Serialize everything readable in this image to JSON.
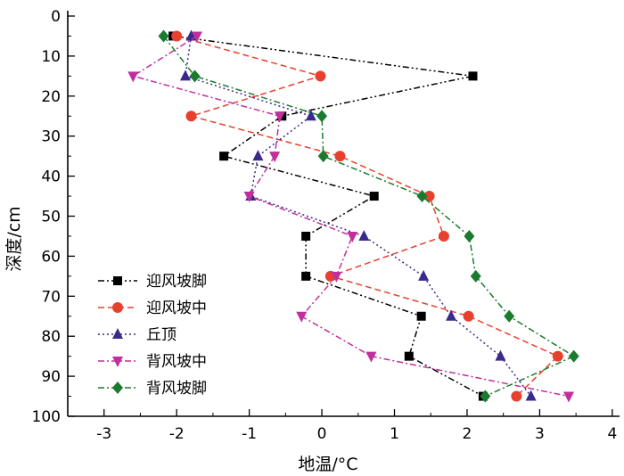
{
  "chart_data": {
    "type": "line",
    "title": "",
    "xlabel": "地温/°C",
    "ylabel": "深度/cm",
    "xlim": [
      -3.5,
      4.1
    ],
    "ylim": [
      0,
      100
    ],
    "y_inverted": true,
    "x_ticks": [
      -3,
      -2,
      -1,
      0,
      1,
      2,
      3,
      4
    ],
    "y_ticks": [
      0,
      10,
      20,
      30,
      40,
      50,
      60,
      70,
      80,
      90,
      100
    ],
    "grid": false,
    "legend_position": "bottom-left",
    "series": [
      {
        "name": "迎风坡脚",
        "color": "#000000",
        "marker": "square",
        "dash": "dash-dot-dot",
        "points": [
          [
            -2.05,
            5
          ],
          [
            2.08,
            15
          ],
          [
            -0.55,
            25
          ],
          [
            -1.35,
            35
          ],
          [
            0.72,
            45
          ],
          [
            -0.22,
            55
          ],
          [
            -0.22,
            65
          ],
          [
            1.37,
            75
          ],
          [
            1.2,
            85
          ],
          [
            2.22,
            95
          ]
        ]
      },
      {
        "name": "迎风坡中",
        "color": "#e8402e",
        "marker": "circle",
        "dash": "dash",
        "points": [
          [
            -2.0,
            5
          ],
          [
            -0.02,
            15
          ],
          [
            -1.8,
            25
          ],
          [
            0.25,
            35
          ],
          [
            1.48,
            45
          ],
          [
            1.68,
            55
          ],
          [
            0.12,
            65
          ],
          [
            2.02,
            75
          ],
          [
            3.25,
            85
          ],
          [
            2.68,
            95
          ]
        ]
      },
      {
        "name": "丘顶",
        "color": "#3a2a8c",
        "marker": "triangle-up",
        "dash": "dot",
        "points": [
          [
            -1.8,
            5
          ],
          [
            -1.88,
            15
          ],
          [
            -0.15,
            25
          ],
          [
            -0.88,
            35
          ],
          [
            -0.98,
            45
          ],
          [
            0.58,
            55
          ],
          [
            1.4,
            65
          ],
          [
            1.78,
            75
          ],
          [
            2.46,
            85
          ],
          [
            2.88,
            95
          ]
        ]
      },
      {
        "name": "背风坡中",
        "color": "#c0309c",
        "marker": "triangle-down",
        "dash": "dash-dot",
        "points": [
          [
            -1.72,
            5
          ],
          [
            -2.6,
            15
          ],
          [
            -0.58,
            25
          ],
          [
            -0.65,
            35
          ],
          [
            -1.0,
            45
          ],
          [
            0.42,
            55
          ],
          [
            0.2,
            65
          ],
          [
            -0.28,
            75
          ],
          [
            0.68,
            85
          ],
          [
            3.4,
            95
          ]
        ]
      },
      {
        "name": "背风坡脚",
        "color": "#1a7a2e",
        "marker": "diamond",
        "dash": "dash-dot",
        "points": [
          [
            -2.18,
            5
          ],
          [
            -1.75,
            15
          ],
          [
            0.0,
            25
          ],
          [
            0.02,
            35
          ],
          [
            1.38,
            45
          ],
          [
            2.03,
            55
          ],
          [
            2.12,
            65
          ],
          [
            2.58,
            75
          ],
          [
            3.47,
            85
          ],
          [
            2.25,
            95
          ]
        ]
      }
    ]
  }
}
